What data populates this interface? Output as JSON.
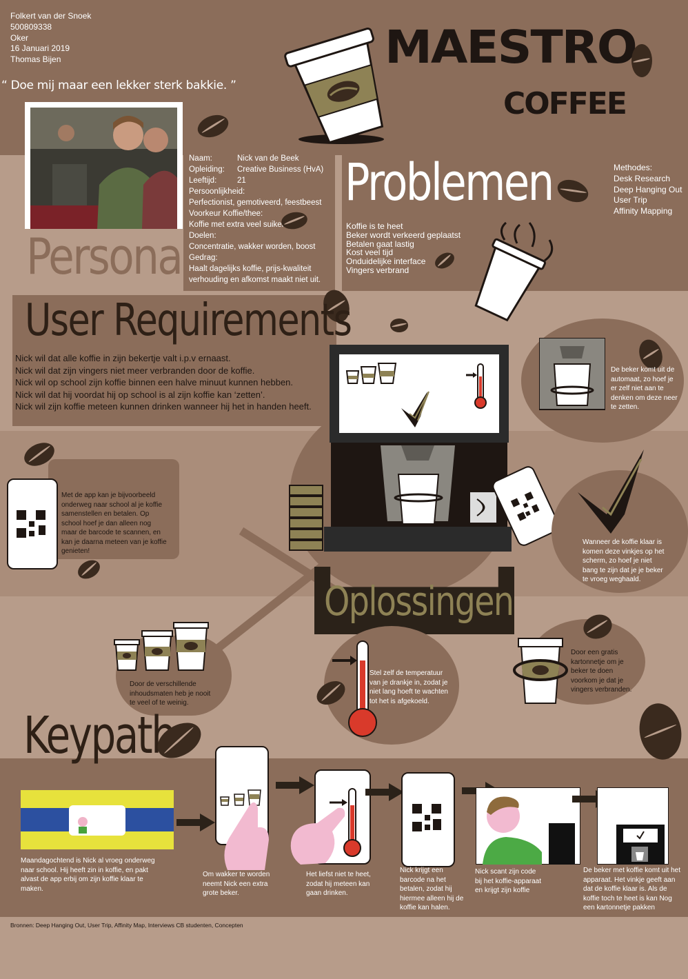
{
  "header": {
    "author": "Folkert van der Snoek",
    "student_number": "500809338",
    "group": "Oker",
    "date": "16 Januari 2019",
    "teacher": "Thomas Bijen",
    "quote": "“ Doe mij maar een lekker sterk bakkie. ”"
  },
  "brand": {
    "line1": "MAESTRO",
    "line2": "COFFEE"
  },
  "persona": {
    "heading": "Persona",
    "fields": [
      {
        "label": "Naam:",
        "value": "Nick van de Beek"
      },
      {
        "label": "Opleiding:",
        "value": "Creative Business (HvA)"
      },
      {
        "label": "Leeftijd:",
        "value": "21"
      }
    ],
    "personality_label": "Persoonlijkheid:",
    "personality_value": "Perfectionist, gemotiveerd, feestbeest",
    "preference_label": "Voorkeur Koffie/thee:",
    "preference_value": "Koffie met extra veel suiker",
    "goals_label": "Doelen:",
    "goals_value": "Concentratie, wakker worden, boost",
    "behavior_label": "Gedrag:",
    "behavior_value_1": "Haalt dagelijks koffie, prijs-kwaliteit",
    "behavior_value_2": "verhouding en afkomst maakt niet uit."
  },
  "problems": {
    "heading": "Problemen",
    "items": [
      "Koffie is te heet",
      "Beker wordt verkeerd geplaatst",
      "Betalen gaat lastig",
      "Kost veel tijd",
      "Onduidelijke interface",
      "Vingers verbrand"
    ],
    "methods_label": "Methodes:",
    "methods": [
      "Desk Research",
      "Deep Hanging Out",
      "User Trip",
      "Affinity Mapping"
    ]
  },
  "requirements": {
    "heading": "User Requirements",
    "items": [
      "Nick wil dat alle koffie in zijn bekertje valt i.p.v ernaast.",
      "Nick wil dat zijn vingers niet meer verbranden door de koffie.",
      "Nick wil op school zijn koffie binnen een halve minuut kunnen hebben.",
      "Nick wil dat hij voordat hij op school is al zijn koffie kan ‘zetten’.",
      "Nick wil zijn koffie meteen kunnen drinken wanneer hij het in handen heeft."
    ]
  },
  "solutions": {
    "heading": "Oplossingen",
    "app": [
      "Met de app kan je bijvoorbeeld",
      "onderweg naar school al je koffie",
      "samenstellen en betalen. Op",
      "school hoef je dan alleen nog",
      "maar de barcode te scannen, en",
      "kan je daarna meteen van je koffie",
      "genieten!"
    ],
    "cup_holder": [
      "De beker komt uit de",
      "automaat, zo hoef je",
      "er zelf niet aan te",
      "denken om deze neer",
      "te zetten."
    ],
    "check": [
      "Wanneer de koffie klaar is",
      "komen deze vinkjes op het",
      "scherm, zo hoef je niet",
      "bang te zijn dat je je beker",
      "te vroeg weghaald."
    ],
    "sizes": [
      "Door de verschillende",
      "inhoudsmaten heb je nooit",
      "te veel of te weinig."
    ],
    "temperature": [
      "Stel zelf de temperatuur",
      "van je drankje in, zodat je",
      "niet lang hoeft te wachten",
      "tot het is afgekoeld."
    ],
    "sleeve": [
      "Door een gratis",
      "kartonnetje om je",
      "beker te doen",
      "voorkom je dat je",
      "vingers verbranden."
    ]
  },
  "keypath": {
    "heading": "Keypath",
    "steps": [
      [
        "Maandagochtend is Nick al vroeg onderweg",
        "naar school. Hij heeft zin in koffie, en pakt",
        "alvast de app erbij om zijn koffie klaar te",
        "maken."
      ],
      [
        "Om wakker te worden",
        "neemt Nick een extra",
        "grote beker."
      ],
      [
        "Het liefst niet te heet,",
        "zodat hij meteen kan",
        "gaan drinken."
      ],
      [
        "Nick krijgt een",
        "barcode na het",
        "betalen, zodat hij",
        "hiermee alleen hij de",
        "koffie kan halen."
      ],
      [
        "Nick scant zijn code",
        "bij het koffie-apparaat",
        "en krijgt zijn koffie"
      ],
      [
        "De beker met koffie komt uit het",
        "apparaat. Het vinkje geeft aan",
        "dat de koffie klaar is. Als de",
        "koffie toch te heet is kan Nog",
        "een kartonnetje pakken"
      ]
    ]
  },
  "sources": "Bronnen: Deep Hanging Out, User Trip, Affinity Map, Interviews CB studenten, Concepten",
  "colors": {
    "band_dark": "#8b6d5a",
    "band_light": "#b79c8a",
    "text_dark": "#2e2016",
    "accent_red": "#d93a2b",
    "sleeve_olive": "#8e8255"
  },
  "icons": [
    "coffee-bean-icon",
    "coffee-cup-icon",
    "qr-code-icon",
    "thermometer-icon",
    "checkmark-icon",
    "phone-icon",
    "hand-pointer-icon",
    "arrow-right-icon"
  ]
}
